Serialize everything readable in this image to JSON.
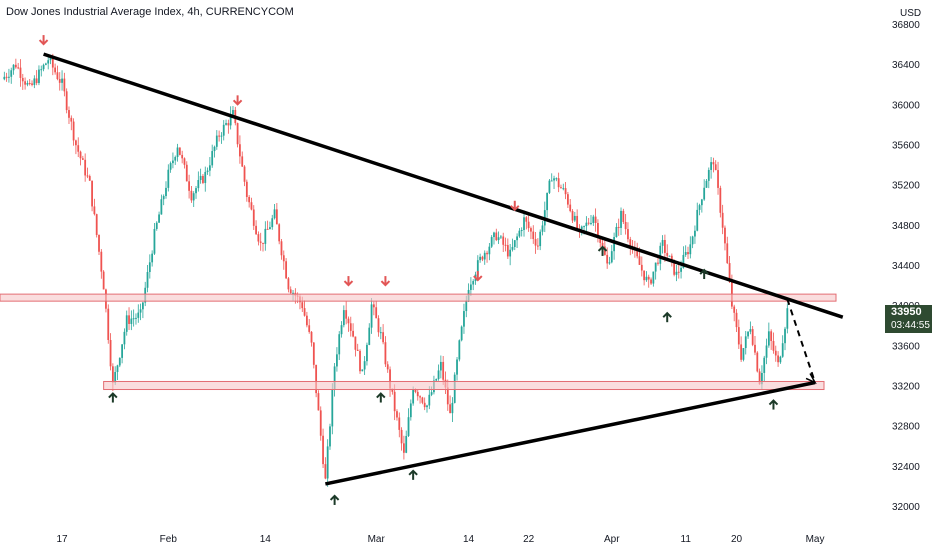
{
  "chart_data": {
    "type": "candlestick",
    "title": "Dow Jones Industrial Average Index, 4h, CURRENCYCOM",
    "unit": "USD",
    "ylim": [
      32000,
      36800
    ],
    "y_ticks": [
      "32000",
      "32400",
      "32800",
      "33200",
      "33600",
      "34000",
      "34400",
      "34800",
      "35200",
      "35600",
      "36000",
      "36400",
      "36800"
    ],
    "x_ticks": [
      "17",
      "Feb",
      "14",
      "Mar",
      "14",
      "22",
      "Apr",
      "11",
      "20",
      "May"
    ],
    "last_price": {
      "value": "33950",
      "countdown": "03:44:55"
    },
    "colors": {
      "up": "#26a69a",
      "down": "#ef5350",
      "zone_fill": "#f6c6c8",
      "zone_border": "#e36d73",
      "line": "#000000",
      "arrow_down": "#e25656",
      "arrow_up": "#1c3a28"
    },
    "price_path": [
      {
        "t": 0,
        "v": 36250
      },
      {
        "t": 1.5,
        "v": 36400
      },
      {
        "t": 3,
        "v": 36150
      },
      {
        "t": 5,
        "v": 36450
      },
      {
        "t": 6.5,
        "v": 36200
      },
      {
        "t": 8,
        "v": 35600
      },
      {
        "t": 9.5,
        "v": 35200
      },
      {
        "t": 11,
        "v": 34200
      },
      {
        "t": 12,
        "v": 33200
      },
      {
        "t": 13.5,
        "v": 33850
      },
      {
        "t": 15,
        "v": 33900
      },
      {
        "t": 16.5,
        "v": 34700
      },
      {
        "t": 18,
        "v": 35300
      },
      {
        "t": 19,
        "v": 35600
      },
      {
        "t": 20.5,
        "v": 35100
      },
      {
        "t": 22,
        "v": 35300
      },
      {
        "t": 23.5,
        "v": 35700
      },
      {
        "t": 25,
        "v": 35900
      },
      {
        "t": 26.5,
        "v": 35100
      },
      {
        "t": 28,
        "v": 34600
      },
      {
        "t": 29.5,
        "v": 34900
      },
      {
        "t": 31,
        "v": 34200
      },
      {
        "t": 32.5,
        "v": 34000
      },
      {
        "t": 33.5,
        "v": 33600
      },
      {
        "t": 35,
        "v": 32250
      },
      {
        "t": 36,
        "v": 33400
      },
      {
        "t": 37,
        "v": 34000
      },
      {
        "t": 38,
        "v": 33700
      },
      {
        "t": 39,
        "v": 33300
      },
      {
        "t": 40,
        "v": 34000
      },
      {
        "t": 41,
        "v": 33700
      },
      {
        "t": 42,
        "v": 33200
      },
      {
        "t": 43.5,
        "v": 32500
      },
      {
        "t": 44.5,
        "v": 33200
      },
      {
        "t": 46,
        "v": 33000
      },
      {
        "t": 47.5,
        "v": 33400
      },
      {
        "t": 48.5,
        "v": 32900
      },
      {
        "t": 49.5,
        "v": 33600
      },
      {
        "t": 50.5,
        "v": 34200
      },
      {
        "t": 52,
        "v": 34500
      },
      {
        "t": 53.5,
        "v": 34700
      },
      {
        "t": 55,
        "v": 34500
      },
      {
        "t": 56.5,
        "v": 34850
      },
      {
        "t": 58,
        "v": 34600
      },
      {
        "t": 59.5,
        "v": 35300
      },
      {
        "t": 61,
        "v": 35100
      },
      {
        "t": 62.5,
        "v": 34700
      },
      {
        "t": 64,
        "v": 34900
      },
      {
        "t": 65.5,
        "v": 34400
      },
      {
        "t": 67,
        "v": 34900
      },
      {
        "t": 68.5,
        "v": 34500
      },
      {
        "t": 70,
        "v": 34200
      },
      {
        "t": 71.5,
        "v": 34600
      },
      {
        "t": 73,
        "v": 34300
      },
      {
        "t": 74.5,
        "v": 34600
      },
      {
        "t": 76,
        "v": 35200
      },
      {
        "t": 77,
        "v": 35450
      },
      {
        "t": 78,
        "v": 34800
      },
      {
        "t": 79,
        "v": 34000
      },
      {
        "t": 80,
        "v": 33500
      },
      {
        "t": 81,
        "v": 33800
      },
      {
        "t": 82,
        "v": 33250
      },
      {
        "t": 83,
        "v": 33700
      },
      {
        "t": 84,
        "v": 33400
      },
      {
        "t": 85,
        "v": 33950
      }
    ],
    "annotations": {
      "resistance_zone": [
        34040,
        34110
      ],
      "support_zone": [
        33160,
        33240
      ],
      "down_trendline": [
        {
          "t": 4.5,
          "v": 36500
        },
        {
          "t": 91,
          "v": 33880
        }
      ],
      "up_trendline": [
        {
          "t": 35,
          "v": 32220
        },
        {
          "t": 88,
          "v": 33230
        }
      ],
      "projection": [
        {
          "t": 85,
          "v": 34060
        },
        {
          "t": 88,
          "v": 33230
        }
      ],
      "down_arrows": [
        {
          "t": 4.5,
          "v": 36600
        },
        {
          "t": 25.5,
          "v": 36000
        },
        {
          "t": 37.5,
          "v": 34200
        },
        {
          "t": 41.5,
          "v": 34200
        },
        {
          "t": 51.5,
          "v": 34250
        },
        {
          "t": 55.5,
          "v": 34950
        }
      ],
      "up_arrows": [
        {
          "t": 12,
          "v": 33120
        },
        {
          "t": 36,
          "v": 32100
        },
        {
          "t": 41,
          "v": 33120
        },
        {
          "t": 44.5,
          "v": 32350
        },
        {
          "t": 65,
          "v": 34580
        },
        {
          "t": 72,
          "v": 33920
        },
        {
          "t": 76,
          "v": 34350
        },
        {
          "t": 83.5,
          "v": 33050
        }
      ]
    }
  }
}
